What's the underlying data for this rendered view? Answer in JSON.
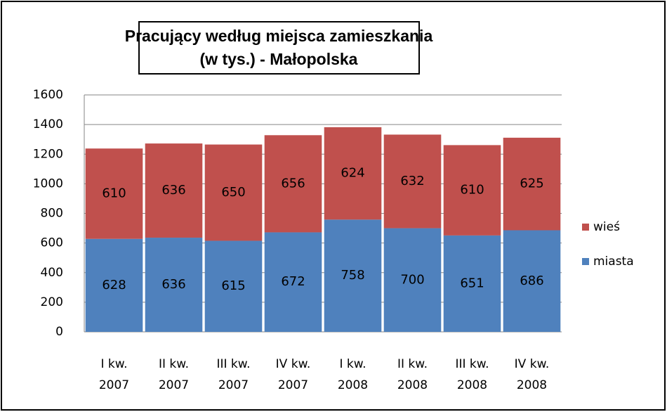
{
  "chart_data": {
    "type": "stacked_bar",
    "title": [
      "Pracujący według miejsca zamieszkania",
      "(w tys.)  - Małopolska"
    ],
    "categories": [
      [
        "I kw.",
        "2007"
      ],
      [
        "II kw.",
        "2007"
      ],
      [
        "III kw.",
        "2007"
      ],
      [
        "IV kw.",
        "2007"
      ],
      [
        "I kw.",
        "2008"
      ],
      [
        "II kw.",
        "2008"
      ],
      [
        "III kw.",
        "2008"
      ],
      [
        "IV kw.",
        "2008"
      ]
    ],
    "series": [
      {
        "name": "miasta",
        "color": "#4f81bd",
        "values": [
          628,
          636,
          615,
          672,
          758,
          700,
          651,
          686
        ]
      },
      {
        "name": "wieś",
        "color": "#c0504d",
        "values": [
          610,
          636,
          650,
          656,
          624,
          632,
          610,
          625
        ]
      }
    ],
    "ylim": [
      0,
      1600
    ],
    "yticks": [
      0,
      200,
      400,
      600,
      800,
      1000,
      1200,
      1400,
      1600
    ],
    "grid": true,
    "legend": "right"
  }
}
